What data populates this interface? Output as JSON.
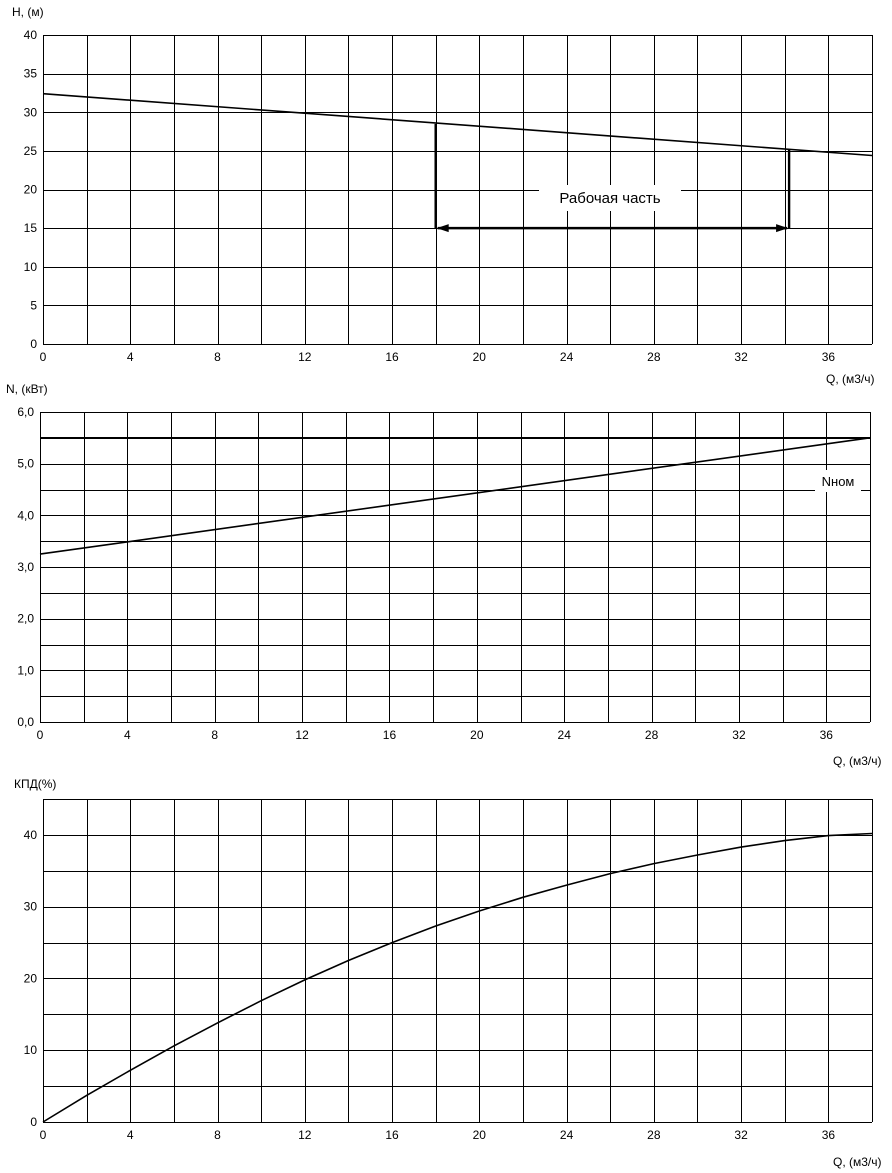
{
  "chart_data": [
    {
      "type": "line",
      "ylabel": "H, (м)",
      "xlabel": "Q, (м3/ч)",
      "xlim": [
        0,
        38
      ],
      "ylim": [
        0,
        40
      ],
      "x_minor_step": 2,
      "y_step": 5,
      "x_ticks": [
        "0",
        "4",
        "8",
        "12",
        "16",
        "20",
        "24",
        "28",
        "32",
        "36"
      ],
      "y_ticks": [
        "0",
        "5",
        "10",
        "15",
        "20",
        "25",
        "30",
        "35",
        "40"
      ],
      "series": [
        {
          "x": [
            0,
            38
          ],
          "y": [
            32.4,
            24.4
          ]
        }
      ],
      "working_range": {
        "x_start": 18,
        "x_end": 34.2,
        "y_start": 28.5,
        "y_end": 25.2,
        "y_arrow": 15
      },
      "annotation": "Рабочая часть"
    },
    {
      "type": "line",
      "ylabel": "N, (кВт)",
      "xlabel": "Q, (м3/ч)",
      "xlim": [
        0,
        38
      ],
      "ylim": [
        0,
        6
      ],
      "x_minor_step": 2,
      "y_step": 0.5,
      "x_ticks": [
        "0",
        "4",
        "8",
        "12",
        "16",
        "20",
        "24",
        "28",
        "32",
        "36"
      ],
      "y_ticks": [
        "0,0",
        "1,0",
        "2,0",
        "3,0",
        "4,0",
        "5,0",
        "6,0"
      ],
      "series": [
        {
          "x": [
            0,
            38
          ],
          "y": [
            3.25,
            5.5
          ]
        },
        {
          "x": [
            0,
            38
          ],
          "y": [
            5.5,
            5.5
          ]
        }
      ],
      "annotation": "Nном"
    },
    {
      "type": "line",
      "ylabel": "КПД(%)",
      "xlabel": "Q, (м3/ч)",
      "xlim": [
        0,
        38
      ],
      "ylim": [
        0,
        45
      ],
      "x_minor_step": 2,
      "y_step": 5,
      "x_ticks": [
        "0",
        "4",
        "8",
        "12",
        "16",
        "20",
        "24",
        "28",
        "32",
        "36"
      ],
      "y_ticks": [
        "0",
        "10",
        "20",
        "30",
        "40"
      ],
      "series": [
        {
          "x": [
            0,
            2,
            4,
            6,
            8,
            10,
            12,
            14,
            16,
            18,
            20,
            22,
            24,
            26,
            28,
            30,
            32,
            34,
            36,
            38
          ],
          "y": [
            0,
            3.7,
            7.2,
            10.6,
            13.8,
            16.9,
            19.8,
            22.5,
            25.0,
            27.3,
            29.4,
            31.3,
            33.0,
            34.6,
            36.0,
            37.2,
            38.3,
            39.2,
            39.9,
            40.2
          ]
        }
      ]
    }
  ]
}
